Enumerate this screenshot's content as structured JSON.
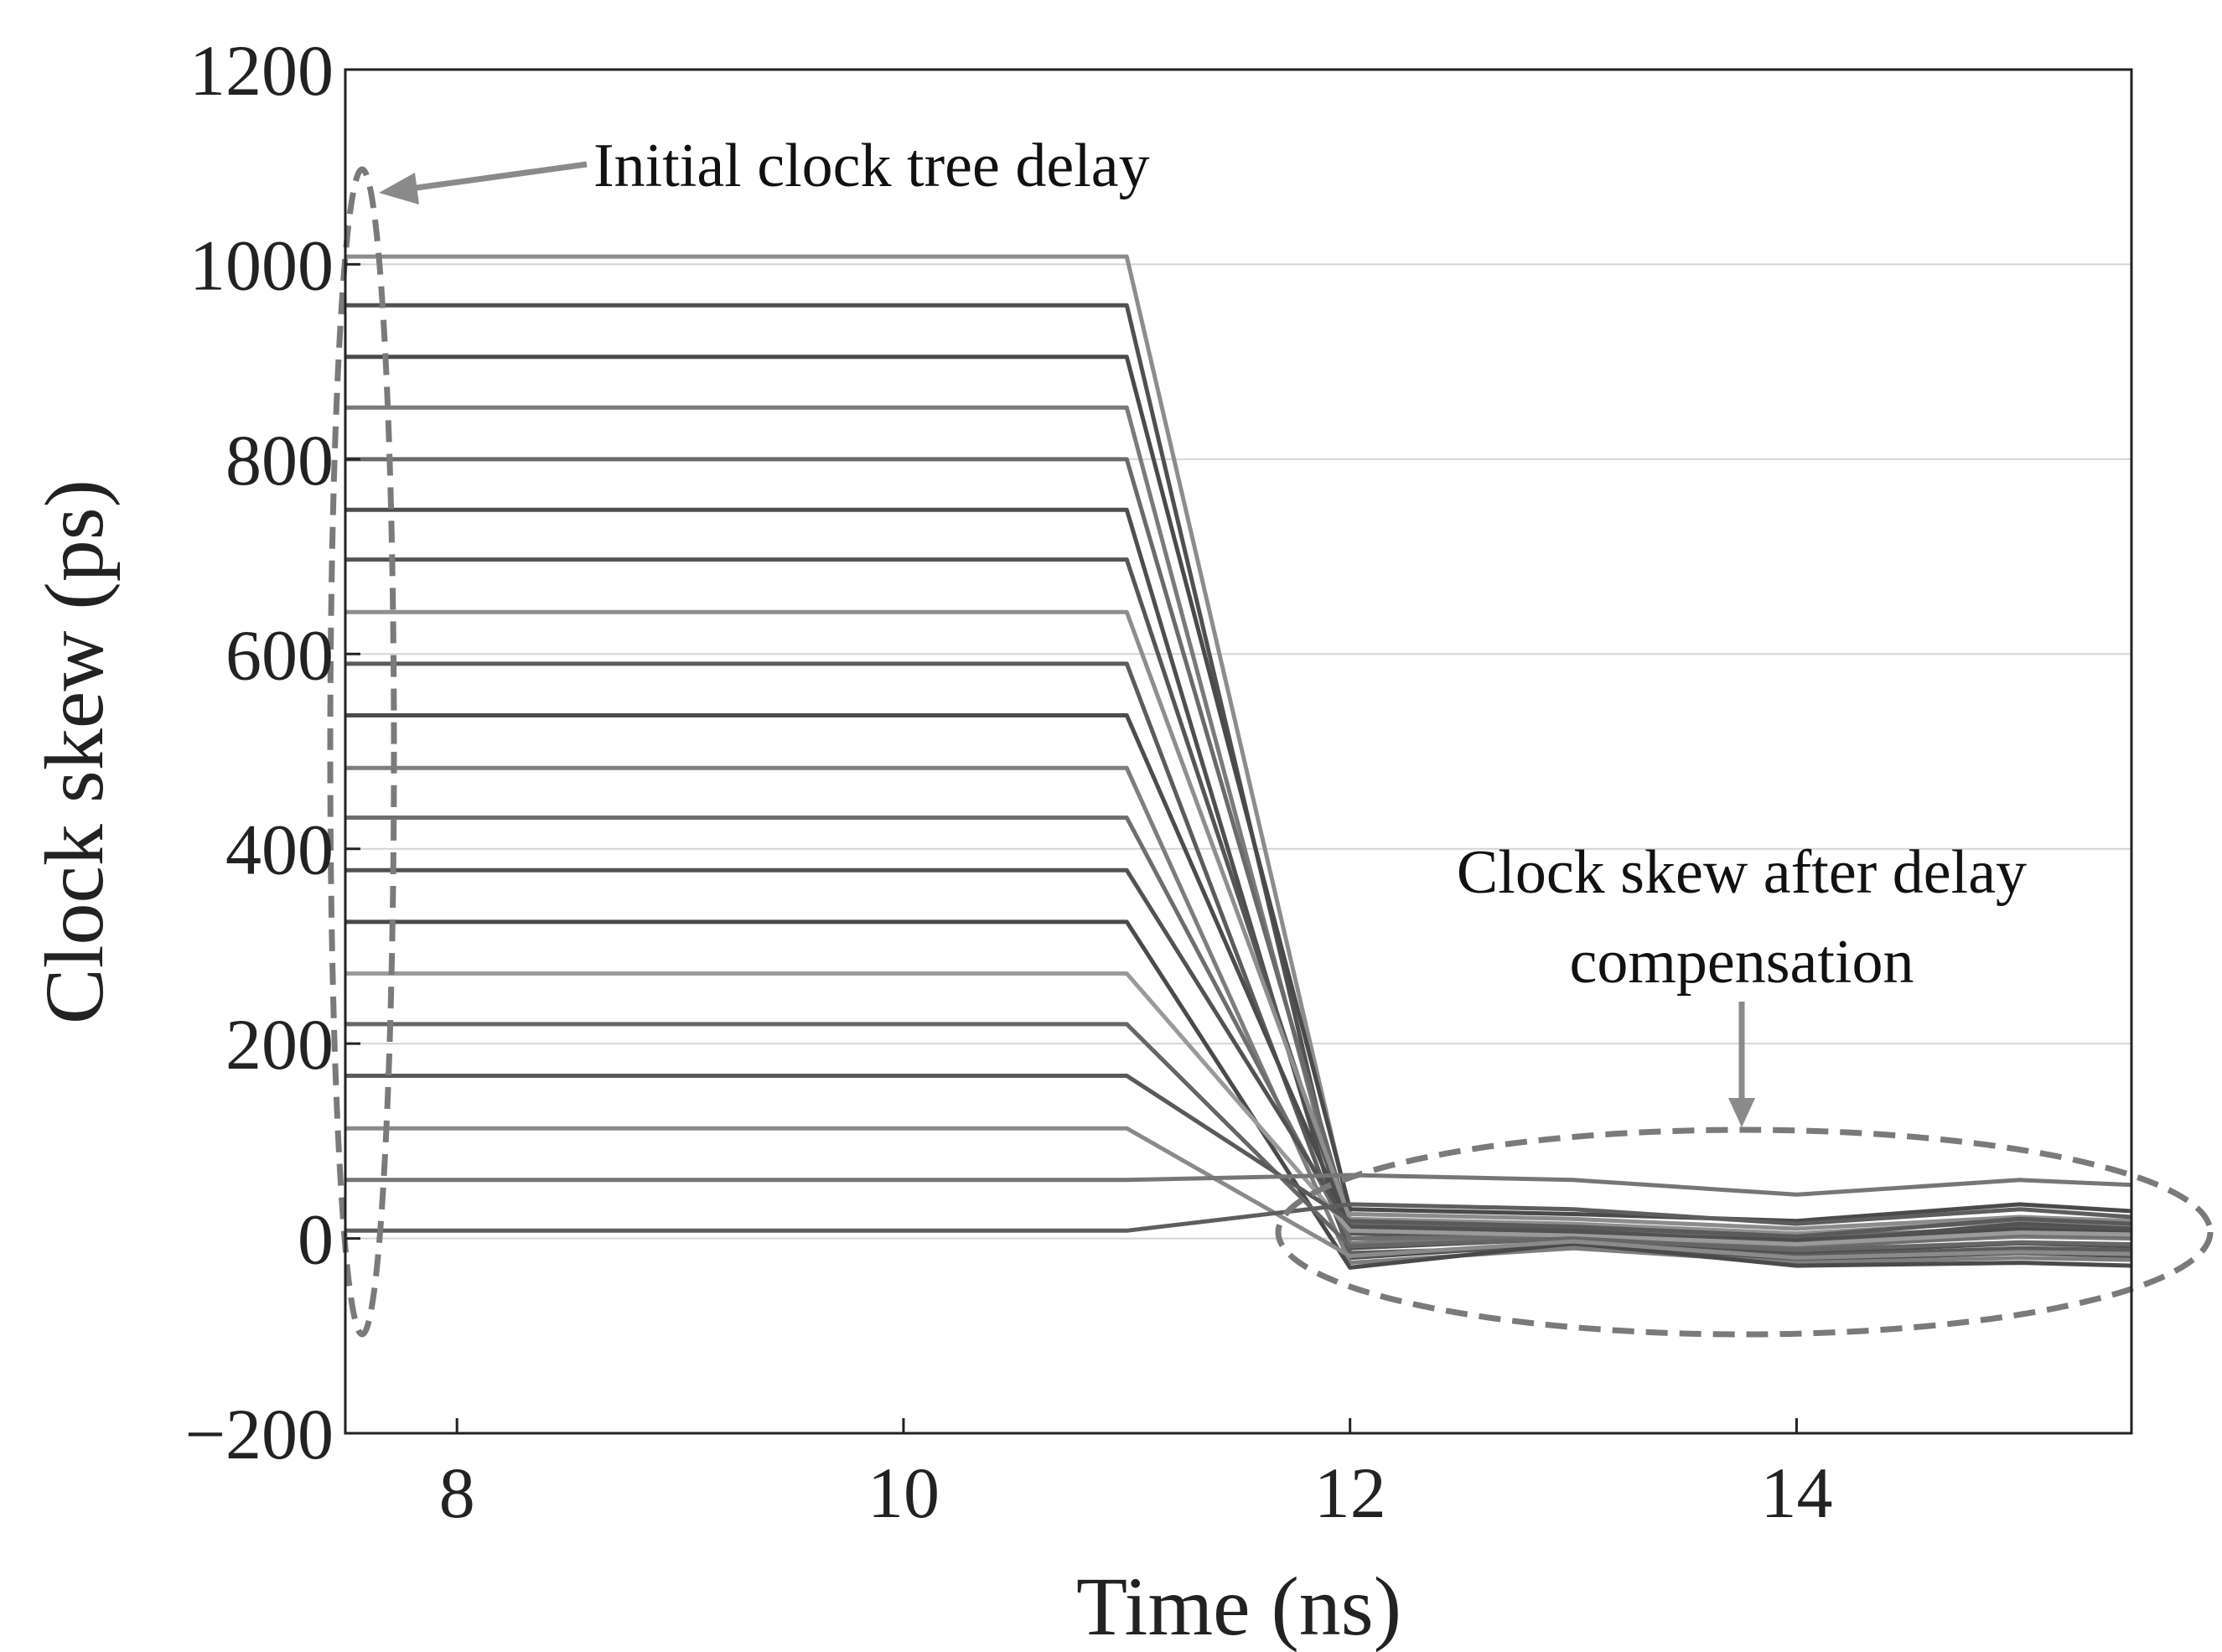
{
  "chart_data": {
    "type": "line",
    "title": "",
    "xlabel": "Time (ns)",
    "ylabel": "Clock skew (ps)",
    "xlim": [
      7.5,
      15.5
    ],
    "ylim": [
      -200,
      1200
    ],
    "xticks": [
      8,
      10,
      12,
      14
    ],
    "yticks": [
      -200,
      0,
      200,
      400,
      600,
      800,
      1000,
      1200
    ],
    "ytick_labels": [
      "−200",
      "0",
      "200",
      "400",
      "600",
      "800",
      "1000",
      "1200"
    ],
    "grid": "horizontal",
    "x": [
      7.5,
      11,
      12,
      13,
      14,
      15,
      15.5
    ],
    "series": [
      {
        "name": "path-1",
        "color": "#8c8c8c",
        "values": [
          1008,
          1008,
          25,
          20,
          10,
          22,
          18
        ]
      },
      {
        "name": "path-2",
        "color": "#505050",
        "values": [
          958,
          958,
          -10,
          0,
          -15,
          -5,
          -8
        ]
      },
      {
        "name": "path-3",
        "color": "#4a4a4a",
        "values": [
          905,
          905,
          30,
          25,
          18,
          35,
          28
        ]
      },
      {
        "name": "path-4",
        "color": "#7a7a7a",
        "values": [
          853,
          853,
          -5,
          5,
          -8,
          2,
          0
        ]
      },
      {
        "name": "path-5",
        "color": "#6a6a6a",
        "values": [
          800,
          800,
          15,
          10,
          0,
          12,
          8
        ]
      },
      {
        "name": "path-6",
        "color": "#4e4e4e",
        "values": [
          748,
          748,
          -20,
          -5,
          -22,
          -15,
          -18
        ]
      },
      {
        "name": "path-7",
        "color": "#555555",
        "values": [
          697,
          697,
          5,
          0,
          -5,
          8,
          5
        ]
      },
      {
        "name": "path-8",
        "color": "#8e8e8e",
        "values": [
          643,
          643,
          20,
          15,
          5,
          18,
          14
        ]
      },
      {
        "name": "path-9",
        "color": "#5c5c5c",
        "values": [
          590,
          590,
          -15,
          -8,
          -18,
          -10,
          -12
        ]
      },
      {
        "name": "path-10",
        "color": "#4c4c4c",
        "values": [
          537,
          537,
          10,
          5,
          -2,
          10,
          6
        ]
      },
      {
        "name": "path-11",
        "color": "#7e7e7e",
        "values": [
          483,
          483,
          -25,
          -10,
          -25,
          -20,
          -22
        ]
      },
      {
        "name": "path-12",
        "color": "#6e6e6e",
        "values": [
          432,
          432,
          0,
          2,
          -10,
          4,
          2
        ]
      },
      {
        "name": "path-13",
        "color": "#525252",
        "values": [
          378,
          378,
          12,
          8,
          -5,
          15,
          10
        ]
      },
      {
        "name": "path-14",
        "color": "#4a4a4a",
        "values": [
          325,
          325,
          -30,
          -5,
          -28,
          -25,
          -28
        ]
      },
      {
        "name": "path-15",
        "color": "#9a9a9a",
        "values": [
          272,
          272,
          8,
          3,
          -6,
          6,
          4
        ]
      },
      {
        "name": "path-16",
        "color": "#666666",
        "values": [
          220,
          220,
          -8,
          0,
          -12,
          -4,
          -6
        ]
      },
      {
        "name": "path-17",
        "color": "#5a5a5a",
        "values": [
          167,
          167,
          18,
          12,
          2,
          20,
          15
        ]
      },
      {
        "name": "path-18",
        "color": "#8a8a8a",
        "values": [
          113,
          113,
          -18,
          -3,
          -20,
          -14,
          -16
        ]
      },
      {
        "name": "path-19",
        "color": "#767676",
        "values": [
          60,
          60,
          65,
          60,
          45,
          60,
          55
        ]
      },
      {
        "name": "path-20",
        "color": "#5e5e5e",
        "values": [
          8,
          8,
          35,
          30,
          15,
          30,
          22
        ]
      }
    ],
    "annotations": [
      {
        "name": "initial-delay-annotation",
        "text_lines": [
          "Initial clock tree delay"
        ]
      },
      {
        "name": "compensated-skew-annotation",
        "text_lines": [
          "Clock skew after delay",
          "compensation"
        ]
      }
    ]
  }
}
